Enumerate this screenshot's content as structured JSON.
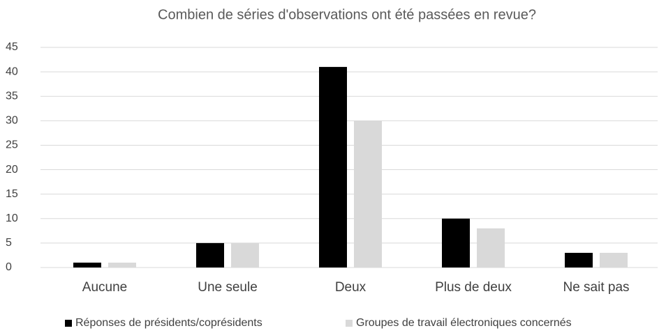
{
  "chart_data": {
    "type": "bar",
    "title": "Combien de séries d'observations ont été passées en revue?",
    "categories": [
      "Aucune",
      "Une seule",
      "Deux",
      "Plus de deux",
      "Ne sait pas"
    ],
    "series": [
      {
        "name": "Réponses de présidents/coprésidents",
        "color": "#000000",
        "values": [
          1,
          5,
          41,
          10,
          3
        ]
      },
      {
        "name": "Groupes de travail électroniques concernés",
        "color": "#d9d9d9",
        "values": [
          1,
          5,
          30,
          8,
          3
        ]
      }
    ],
    "ylim": [
      0,
      45
    ],
    "yticks": [
      0,
      5,
      10,
      15,
      20,
      25,
      30,
      35,
      40,
      45
    ],
    "grid": true,
    "legend": "bottom"
  }
}
